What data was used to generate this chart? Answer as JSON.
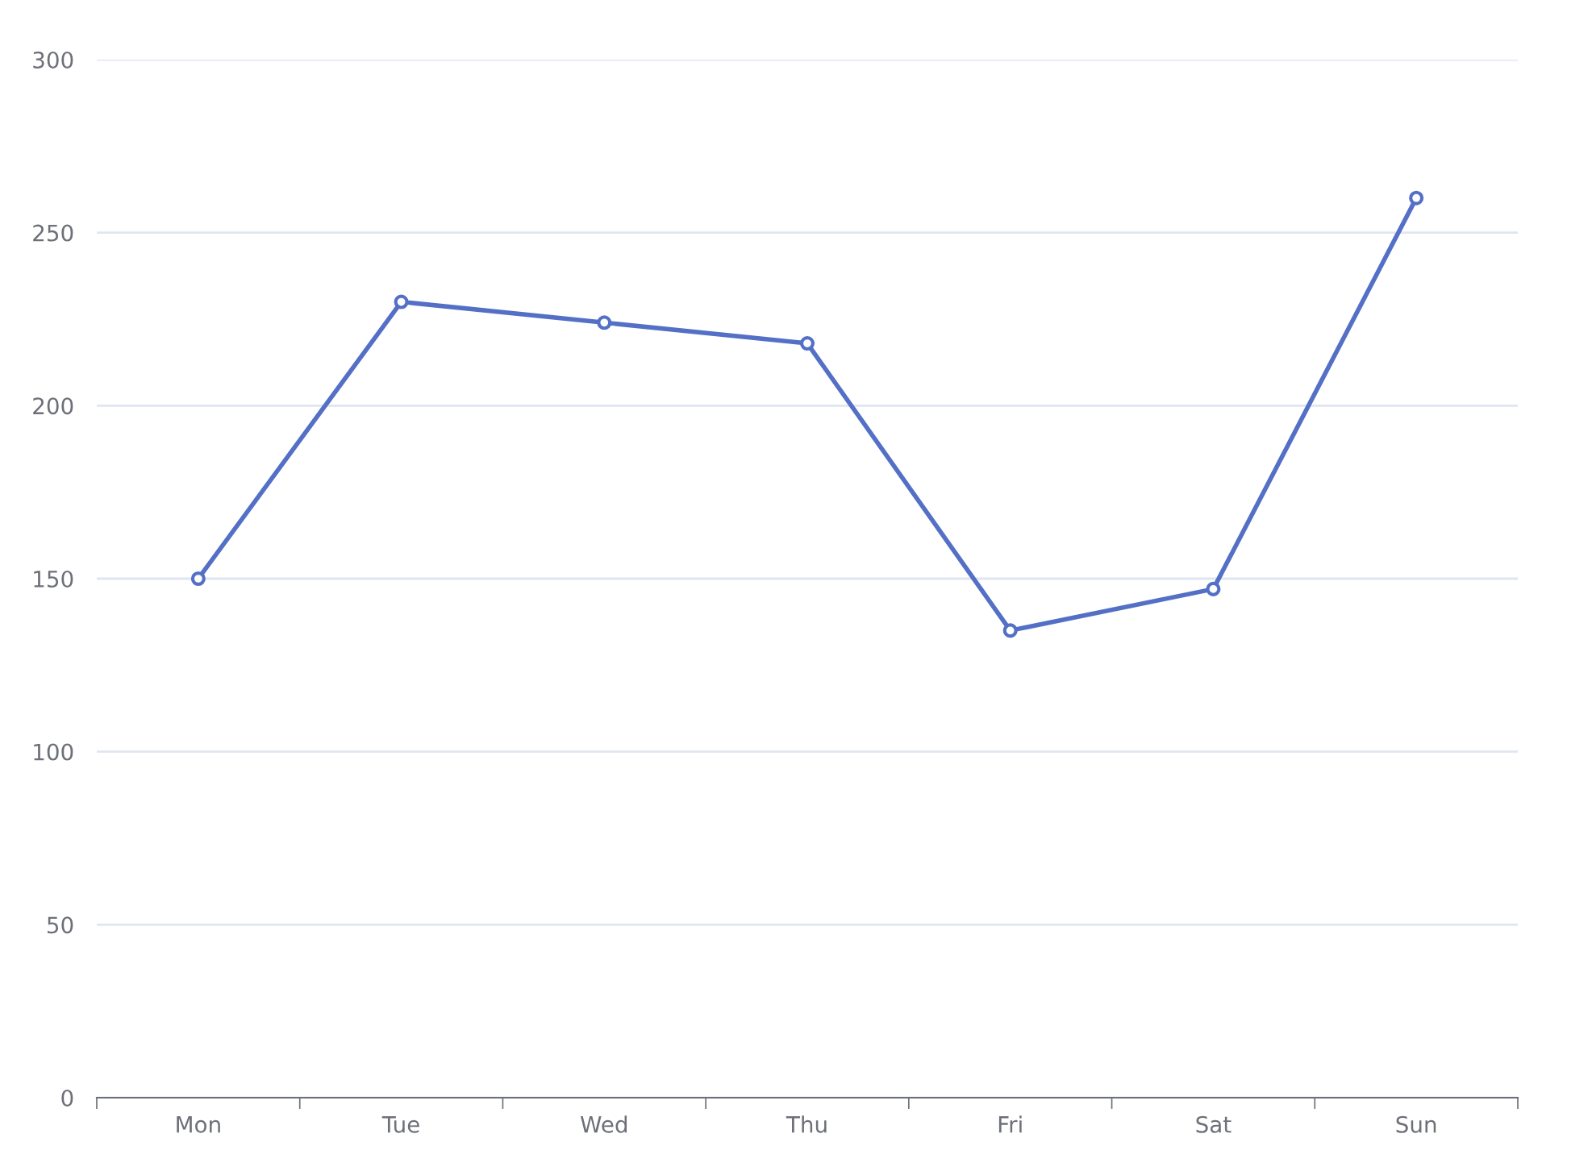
{
  "chart_data": {
    "type": "line",
    "categories": [
      "Mon",
      "Tue",
      "Wed",
      "Thu",
      "Fri",
      "Sat",
      "Sun"
    ],
    "series": [
      {
        "color": "#5470c6",
        "values": [
          150,
          230,
          224,
          218,
          135,
          147,
          260
        ]
      }
    ],
    "ylim": [
      0,
      300
    ],
    "yticks": [
      0,
      50,
      100,
      150,
      200,
      250,
      300
    ],
    "grid": "y",
    "marker": "circle",
    "line_style": "solid"
  }
}
